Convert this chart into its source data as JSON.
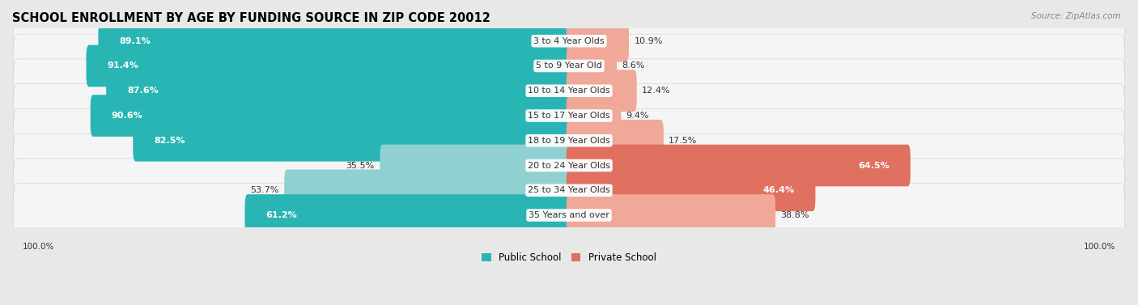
{
  "title": "SCHOOL ENROLLMENT BY AGE BY FUNDING SOURCE IN ZIP CODE 20012",
  "source": "Source: ZipAtlas.com",
  "categories": [
    "3 to 4 Year Olds",
    "5 to 9 Year Old",
    "10 to 14 Year Olds",
    "15 to 17 Year Olds",
    "18 to 19 Year Olds",
    "20 to 24 Year Olds",
    "25 to 34 Year Olds",
    "35 Years and over"
  ],
  "public_values": [
    89.1,
    91.4,
    87.6,
    90.6,
    82.5,
    35.5,
    53.7,
    61.2
  ],
  "private_values": [
    10.9,
    8.6,
    12.4,
    9.4,
    17.5,
    64.5,
    46.4,
    38.8
  ],
  "public_color_dark": "#2ab5b5",
  "public_color_light": "#90d0d0",
  "private_color_dark": "#e07060",
  "private_color_light": "#f0a898",
  "bg_color": "#e8e8e8",
  "row_bg_color": "#f5f5f5",
  "title_fontsize": 10.5,
  "label_fontsize": 8,
  "value_fontsize": 8,
  "legend_fontsize": 8.5,
  "axis_label_fontsize": 7.5
}
